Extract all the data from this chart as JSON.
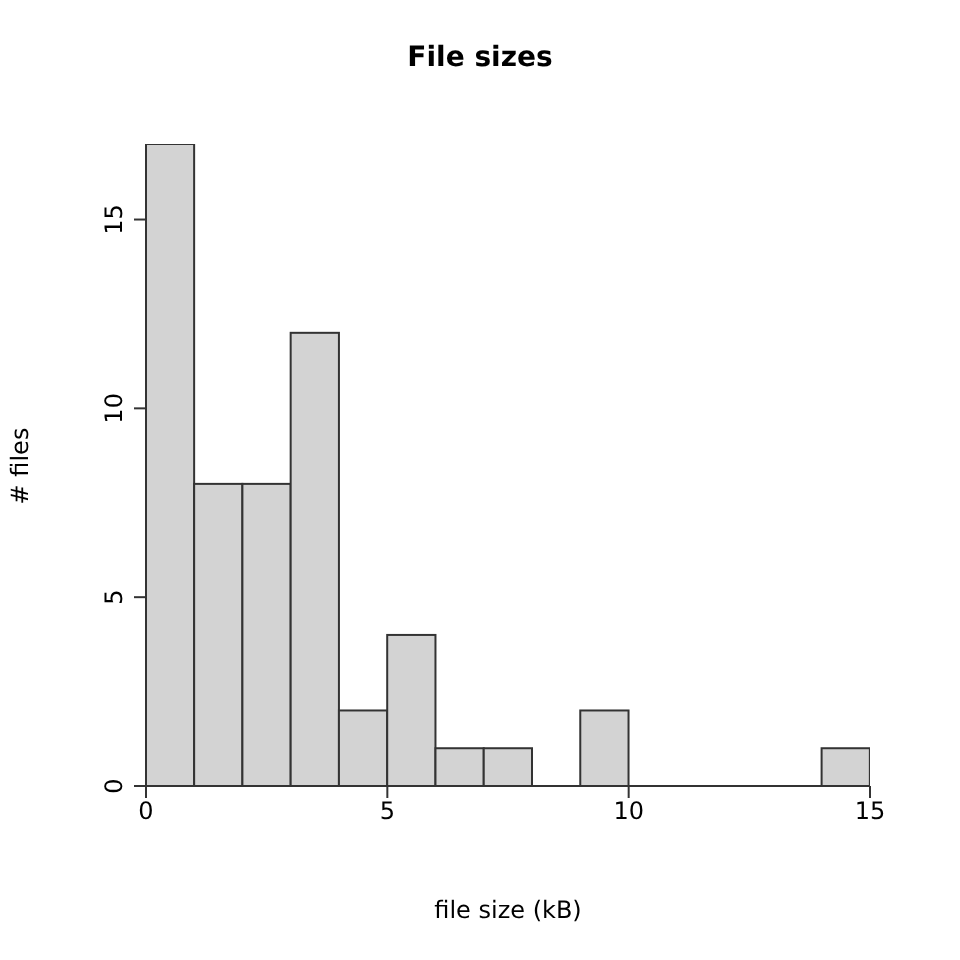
{
  "chart_data": {
    "type": "histogram",
    "title": "File sizes",
    "xlabel": "file size (kB)",
    "ylabel": "# files",
    "bins": [
      0,
      1,
      2,
      3,
      4,
      5,
      6,
      7,
      8,
      9,
      10,
      11,
      12,
      13,
      14,
      15
    ],
    "values": [
      17,
      8,
      8,
      12,
      2,
      4,
      1,
      1,
      0,
      2,
      0,
      0,
      0,
      0,
      1
    ],
    "color": "#d3d3d3",
    "xlim": [
      0,
      15
    ],
    "xticks": [
      0,
      5,
      10,
      15
    ],
    "ylim": [
      0,
      17
    ],
    "yticks": [
      0,
      5,
      10,
      15
    ]
  }
}
